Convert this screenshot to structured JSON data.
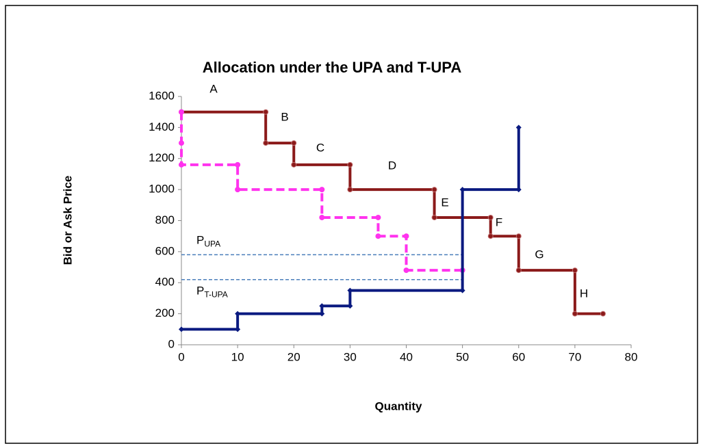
{
  "chart_data": {
    "type": "line",
    "title": "Allocation under the UPA and T-UPA",
    "xlabel": "Quantity",
    "ylabel": "Bid or Ask Price",
    "xlim": [
      0,
      80
    ],
    "xticks": [
      0,
      10,
      20,
      30,
      40,
      50,
      60,
      70,
      80
    ],
    "ylim": [
      0,
      1600
    ],
    "yticks": [
      0,
      200,
      400,
      600,
      800,
      1000,
      1200,
      1400,
      1600
    ],
    "series": [
      {
        "color": "#8b1a1a",
        "marker": "circle",
        "dashed": false,
        "x": [
          0,
          15,
          15,
          20,
          20,
          30,
          30,
          45,
          45,
          55,
          55,
          60,
          60,
          70,
          70,
          75
        ],
        "values": [
          1500,
          1500,
          1300,
          1300,
          1160,
          1160,
          1000,
          1000,
          820,
          820,
          700,
          700,
          480,
          480,
          200,
          200
        ]
      },
      {
        "color": "#ff33ee",
        "marker": "circle",
        "dashed": true,
        "x": [
          0,
          0,
          0,
          10,
          10,
          25,
          25,
          35,
          35,
          40,
          40,
          50
        ],
        "values": [
          1500,
          1300,
          1160,
          1160,
          1000,
          1000,
          820,
          820,
          700,
          700,
          480,
          480
        ]
      },
      {
        "color": "#0a1a80",
        "marker": "diamond",
        "dashed": false,
        "x": [
          0,
          10,
          10,
          25,
          25,
          30,
          30,
          50,
          50,
          60,
          60
        ],
        "values": [
          100,
          100,
          200,
          200,
          250,
          250,
          350,
          350,
          1000,
          1000,
          1400
        ]
      }
    ],
    "price_lines": [
      {
        "label": "P",
        "sub": "UPA",
        "value": 580,
        "x_end": 50
      },
      {
        "label": "P",
        "sub": "T-UPA",
        "value": 420,
        "x_end": 50
      }
    ],
    "step_labels": [
      "A",
      "B",
      "C",
      "D",
      "E",
      "F",
      "G",
      "H"
    ]
  }
}
